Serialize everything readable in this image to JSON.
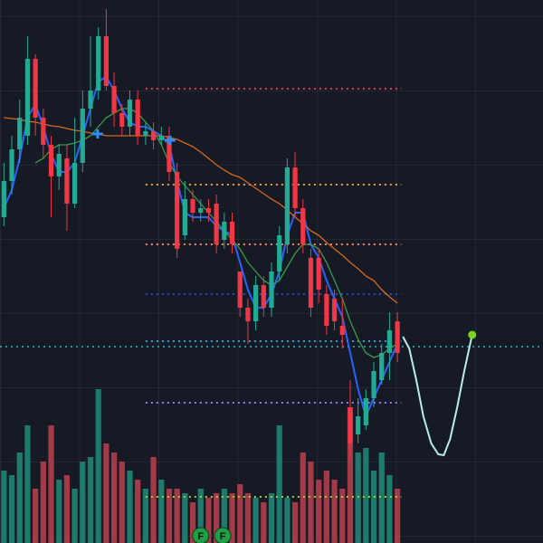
{
  "chart_data": {
    "type": "candlestick",
    "xlim": [
      -0.5,
      68.5
    ],
    "ylim": [
      0,
      600
    ],
    "up_color": "#22ab94",
    "down_color": "#f23645",
    "open": [
      360,
      400,
      435,
      450,
      535,
      470,
      440,
      405,
      425,
      375,
      420,
      480,
      500,
      560,
      505,
      475,
      460,
      490,
      450,
      455,
      445,
      450,
      410,
      340,
      380,
      365,
      370,
      375,
      335,
      355,
      300,
      260,
      245,
      285,
      260,
      300,
      330,
      415,
      370,
      315,
      315,
      275,
      270,
      240,
      150,
      120,
      130,
      160,
      180,
      210,
      245
    ],
    "high": [
      420,
      450,
      490,
      560,
      540,
      480,
      450,
      440,
      440,
      470,
      500,
      560,
      570,
      590,
      520,
      485,
      500,
      500,
      465,
      465,
      460,
      460,
      420,
      400,
      390,
      380,
      380,
      385,
      365,
      365,
      300,
      270,
      295,
      295,
      310,
      350,
      425,
      432,
      380,
      325,
      325,
      285,
      280,
      270,
      180,
      160,
      170,
      200,
      220,
      255,
      255
    ],
    "low": [
      350,
      385,
      420,
      440,
      450,
      425,
      360,
      390,
      345,
      370,
      410,
      460,
      490,
      500,
      460,
      450,
      450,
      440,
      440,
      435,
      440,
      400,
      315,
      335,
      355,
      355,
      355,
      320,
      325,
      320,
      250,
      220,
      235,
      250,
      250,
      290,
      320,
      360,
      320,
      250,
      265,
      230,
      235,
      215,
      95,
      110,
      125,
      150,
      175,
      180,
      200
    ],
    "close": [
      400,
      435,
      470,
      535,
      470,
      440,
      405,
      430,
      375,
      420,
      480,
      500,
      560,
      505,
      475,
      460,
      490,
      450,
      455,
      445,
      450,
      410,
      325,
      380,
      365,
      370,
      365,
      330,
      355,
      330,
      260,
      245,
      285,
      260,
      300,
      340,
      415,
      370,
      330,
      260,
      280,
      240,
      245,
      230,
      110,
      140,
      160,
      190,
      210,
      235,
      210
    ],
    "volume": [
      80,
      75,
      100,
      130,
      60,
      90,
      130,
      70,
      75,
      60,
      90,
      95,
      170,
      110,
      100,
      90,
      80,
      70,
      60,
      95,
      70,
      60,
      60,
      55,
      45,
      60,
      50,
      55,
      60,
      55,
      65,
      55,
      50,
      45,
      55,
      130,
      50,
      45,
      100,
      90,
      70,
      80,
      70,
      60,
      150,
      100,
      105,
      80,
      100,
      75,
      60
    ],
    "volume_ylim": [
      0,
      600
    ],
    "volume_up_color": "#1e7a6d",
    "volume_down_color": "#a33a48",
    "moving_averages": [
      {
        "color": "#2962ff",
        "values": [
          370,
          390,
          425,
          470,
          485,
          460,
          430,
          410,
          410,
          420,
          450,
          480,
          510,
          515,
          500,
          480,
          465,
          460,
          460,
          455,
          450,
          440,
          400,
          365,
          360,
          360,
          360,
          350,
          345,
          340,
          310,
          280,
          260,
          260,
          275,
          300,
          340,
          365,
          365,
          330,
          315,
          290,
          270,
          250,
          210,
          170,
          140,
          160,
          180,
          200,
          220
        ]
      },
      {
        "color": "#3c9a4c",
        "values": [
          null,
          null,
          null,
          null,
          420,
          425,
          435,
          440,
          440,
          442,
          445,
          450,
          460,
          470,
          475,
          480,
          480,
          475,
          465,
          455,
          440,
          420,
          405,
          395,
          385,
          375,
          365,
          355,
          345,
          335,
          325,
          310,
          300,
          290,
          285,
          290,
          305,
          320,
          330,
          330,
          325,
          310,
          290,
          270,
          245,
          225,
          210,
          205,
          208,
          215,
          220
        ]
      },
      {
        "color": "#d9681e",
        "values": [
          470,
          469,
          468,
          466,
          465,
          463,
          461,
          460,
          458,
          456,
          455,
          453,
          452,
          450,
          450,
          450,
          450,
          450,
          450,
          450,
          450,
          448,
          446,
          442,
          438,
          432,
          425,
          418,
          412,
          407,
          404,
          398,
          392,
          386,
          380,
          375,
          368,
          360,
          353,
          345,
          340,
          332,
          325,
          318,
          310,
          303,
          295,
          290,
          280,
          272,
          265
        ]
      }
    ],
    "levels": [
      {
        "value": 502,
        "color": "#e0384c",
        "from": 18
      },
      {
        "value": 396,
        "color": "#f0a030",
        "from": 18
      },
      {
        "value": 330,
        "color": "#f08a5a",
        "from": 18
      },
      {
        "value": 275,
        "color": "#2a4bd0",
        "from": 18
      },
      {
        "value": 223,
        "color": "#29a3e8",
        "from": 18
      },
      {
        "value": 155,
        "color": "#8a7cf0",
        "from": 18
      },
      {
        "value": 51,
        "color": "#9ed030",
        "from": 18
      },
      {
        "value": 217,
        "color": "#2a8f9a",
        "from": -0.5
      }
    ],
    "level_end": 50.5,
    "projection": {
      "color": "#b8ecf0",
      "end_color": "#7ed321",
      "x": [
        50.7,
        51.5,
        52.4,
        53.3,
        54.3,
        55.2,
        55.9,
        56.7,
        57.6,
        58.5,
        59.5
      ],
      "values": [
        228,
        215,
        180,
        140,
        110,
        98,
        97,
        115,
        150,
        190,
        230
      ]
    },
    "signals": {
      "color": "#2f8ff0",
      "x": [
        11.9,
        21.1
      ],
      "values": [
        452,
        445
      ]
    },
    "markers": [
      {
        "label": "F",
        "x": 25.0
      },
      {
        "label": "F",
        "x": 27.8
      }
    ],
    "marker_value": 8,
    "marker_color": "#1e9e45"
  }
}
